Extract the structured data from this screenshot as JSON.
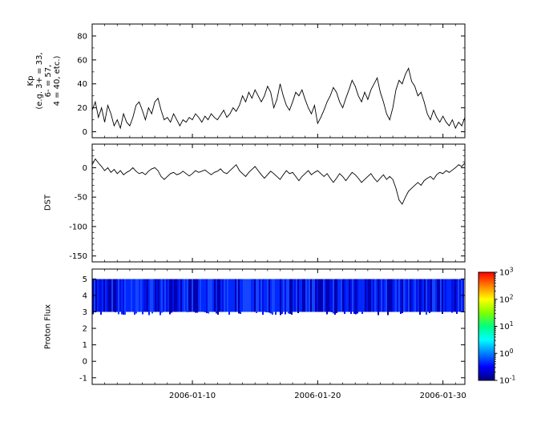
{
  "figure": {
    "background": "#ffffff",
    "line_color": "#000000"
  },
  "x_axis": {
    "range": [
      0,
      29.75
    ],
    "minor_step": 1,
    "major_ticks": [
      {
        "day": 8,
        "label": "2006-01-10"
      },
      {
        "day": 18,
        "label": "2006-01-20"
      },
      {
        "day": 28,
        "label": "2006-01-30"
      }
    ]
  },
  "chart_data": [
    {
      "type": "line",
      "name": "kp",
      "ylabel_lines": [
        "Kp",
        "(e.g. 3+ = 33,",
        "6- = 57,",
        "4 = 40, etc.)"
      ],
      "y_range": [
        -5,
        90
      ],
      "y_ticks": [
        0,
        20,
        40,
        60,
        80
      ],
      "y_minor_step": 10,
      "x_step": 0.25,
      "values": [
        18,
        25,
        12,
        20,
        8,
        22,
        15,
        5,
        10,
        3,
        15,
        8,
        5,
        12,
        22,
        25,
        18,
        10,
        20,
        15,
        25,
        28,
        18,
        10,
        12,
        8,
        15,
        10,
        5,
        10,
        8,
        12,
        10,
        15,
        12,
        8,
        13,
        10,
        15,
        12,
        10,
        14,
        18,
        12,
        15,
        20,
        17,
        22,
        30,
        25,
        33,
        28,
        35,
        30,
        25,
        30,
        38,
        33,
        20,
        27,
        40,
        30,
        22,
        18,
        25,
        33,
        30,
        35,
        27,
        20,
        15,
        22,
        7,
        12,
        18,
        25,
        30,
        37,
        33,
        25,
        20,
        28,
        35,
        43,
        38,
        30,
        25,
        33,
        27,
        35,
        40,
        45,
        33,
        25,
        15,
        10,
        20,
        35,
        43,
        40,
        48,
        53,
        42,
        38,
        30,
        33,
        25,
        15,
        10,
        18,
        12,
        8,
        13,
        8,
        5,
        10,
        3,
        8,
        5,
        12
      ]
    },
    {
      "type": "line",
      "name": "dst",
      "ylabel": "DST",
      "y_range": [
        -160,
        40
      ],
      "y_ticks": [
        0,
        -50,
        -100,
        -150
      ],
      "y_minor_step": 10,
      "x_step": 0.25,
      "values": [
        5,
        15,
        8,
        2,
        -5,
        0,
        -8,
        -3,
        -10,
        -5,
        -12,
        -8,
        -5,
        0,
        -6,
        -10,
        -8,
        -12,
        -6,
        -2,
        0,
        -5,
        -15,
        -20,
        -15,
        -10,
        -8,
        -12,
        -10,
        -6,
        -10,
        -14,
        -10,
        -5,
        -8,
        -6,
        -4,
        -8,
        -12,
        -8,
        -6,
        -2,
        -8,
        -10,
        -5,
        0,
        5,
        -5,
        -10,
        -15,
        -8,
        -3,
        2,
        -5,
        -12,
        -18,
        -12,
        -6,
        -10,
        -15,
        -20,
        -12,
        -5,
        -10,
        -8,
        -15,
        -22,
        -15,
        -10,
        -5,
        -12,
        -8,
        -5,
        -10,
        -15,
        -10,
        -18,
        -25,
        -18,
        -10,
        -15,
        -22,
        -15,
        -8,
        -12,
        -18,
        -25,
        -20,
        -15,
        -10,
        -18,
        -24,
        -18,
        -12,
        -20,
        -15,
        -20,
        -35,
        -55,
        -62,
        -50,
        -40,
        -35,
        -30,
        -25,
        -30,
        -22,
        -18,
        -15,
        -20,
        -12,
        -8,
        -10,
        -5,
        -8,
        -4,
        0,
        5,
        2,
        8
      ]
    },
    {
      "type": "heatmap",
      "name": "proton_flux",
      "ylabel": "Proton Flux",
      "y_range": [
        -1.4,
        5.6
      ],
      "y_ticks": [
        -1,
        0,
        1,
        2,
        3,
        4,
        5
      ],
      "band": {
        "y_from": 3,
        "y_to": 5
      },
      "band_colors": [
        "#0000b0",
        "#0010e8",
        "#0028ff",
        "#1545ff"
      ],
      "colorbar": {
        "label_base": "10",
        "exponents": [
          3,
          2,
          1,
          0,
          -1
        ],
        "colors_bottom_to_top": [
          "#000080",
          "#0000ff",
          "#0080ff",
          "#00ffff",
          "#00ff80",
          "#80ff00",
          "#ffff00",
          "#ff8000",
          "#ff0000"
        ]
      }
    }
  ]
}
